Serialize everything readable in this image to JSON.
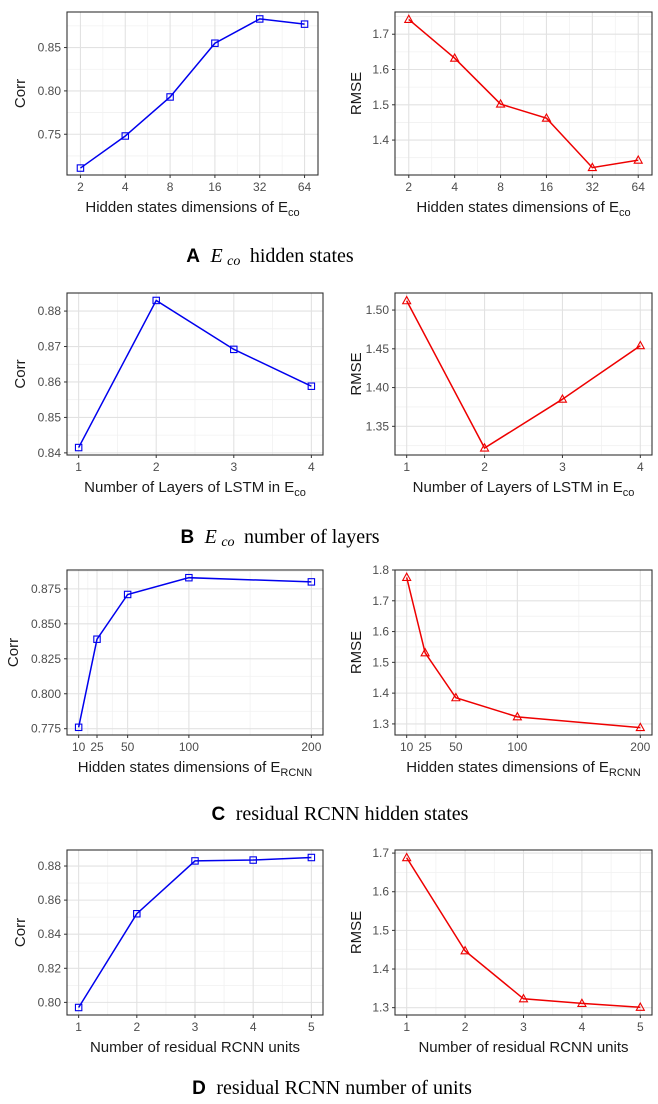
{
  "colors": {
    "corr": "#0000ee",
    "rmse": "#ee0000",
    "grid_major": "#e2e2e2",
    "grid_minor": "#f1f1f1",
    "panel_border": "#333333"
  },
  "panels": [
    {
      "letter": "A",
      "caption_math": "E",
      "caption_math_sub": "co",
      "caption_text": "hidden states"
    },
    {
      "letter": "B",
      "caption_math": "E",
      "caption_math_sub": "co",
      "caption_text": "number of layers"
    },
    {
      "letter": "C",
      "caption_math": "",
      "caption_math_sub": "",
      "caption_text": "residual RCNN hidden states"
    },
    {
      "letter": "D",
      "caption_math": "",
      "caption_math_sub": "",
      "caption_text": "residual RCNN number of units"
    }
  ],
  "chart_data": [
    {
      "type": "line",
      "panel": "A",
      "metric": "corr",
      "marker": "square",
      "xlabel": "Hidden states dimensions of E",
      "xlabel_sub": "co",
      "ylabel": "Corr",
      "x_scale": "categorical",
      "x": [
        2,
        4,
        8,
        16,
        32,
        64
      ],
      "x_tick_labels": [
        "2",
        "4",
        "8",
        "16",
        "32",
        "64"
      ],
      "y": [
        0.711,
        0.748,
        0.793,
        0.855,
        0.883,
        0.877
      ],
      "ylim": [
        0.703,
        0.891
      ],
      "y_ticks": [
        0.75,
        0.8,
        0.85
      ],
      "y_tick_labels": [
        "0.75",
        "0.80",
        "0.85"
      ],
      "grid": true
    },
    {
      "type": "line",
      "panel": "A",
      "metric": "rmse",
      "marker": "triangle",
      "xlabel": "Hidden states dimensions of E",
      "xlabel_sub": "co",
      "ylabel": "RMSE",
      "x_scale": "categorical",
      "x": [
        2,
        4,
        8,
        16,
        32,
        64
      ],
      "x_tick_labels": [
        "2",
        "4",
        "8",
        "16",
        "32",
        "64"
      ],
      "y": [
        1.742,
        1.632,
        1.502,
        1.462,
        1.322,
        1.343
      ],
      "ylim": [
        1.301,
        1.763
      ],
      "y_ticks": [
        1.4,
        1.5,
        1.6,
        1.7
      ],
      "y_tick_labels": [
        "1.4",
        "1.5",
        "1.6",
        "1.7"
      ],
      "grid": true
    },
    {
      "type": "line",
      "panel": "B",
      "metric": "corr",
      "marker": "square",
      "xlabel": "Number of Layers of LSTM in E",
      "xlabel_sub": "co",
      "ylabel": "Corr",
      "x_scale": "linear",
      "x": [
        1,
        2,
        3,
        4
      ],
      "x_tick_labels": [
        "1",
        "2",
        "3",
        "4"
      ],
      "xlim": [
        0.85,
        4.15
      ],
      "y": [
        0.8415,
        0.883,
        0.8692,
        0.8588
      ],
      "ylim": [
        0.8394,
        0.8851
      ],
      "y_ticks": [
        0.84,
        0.85,
        0.86,
        0.87,
        0.88
      ],
      "y_tick_labels": [
        "0.84",
        "0.85",
        "0.86",
        "0.87",
        "0.88"
      ],
      "grid": true
    },
    {
      "type": "line",
      "panel": "B",
      "metric": "rmse",
      "marker": "triangle",
      "xlabel": "Number of Layers of LSTM in E",
      "xlabel_sub": "co",
      "ylabel": "RMSE",
      "x_scale": "linear",
      "x": [
        1,
        2,
        3,
        4
      ],
      "x_tick_labels": [
        "1",
        "2",
        "3",
        "4"
      ],
      "xlim": [
        0.85,
        4.15
      ],
      "y": [
        1.512,
        1.322,
        1.385,
        1.454
      ],
      "ylim": [
        1.313,
        1.522
      ],
      "y_ticks": [
        1.35,
        1.4,
        1.45,
        1.5
      ],
      "y_tick_labels": [
        "1.35",
        "1.40",
        "1.45",
        "1.50"
      ],
      "grid": true
    },
    {
      "type": "line",
      "panel": "C",
      "metric": "corr",
      "marker": "square",
      "xlabel": "Hidden states dimensions of E",
      "xlabel_sub": "RCNN",
      "ylabel": "Corr",
      "x_scale": "linear",
      "x": [
        10,
        25,
        50,
        100,
        200
      ],
      "x_tick_labels": [
        "10",
        "25",
        "50",
        "100",
        "200"
      ],
      "xlim": [
        0.5,
        209.5
      ],
      "y": [
        0.776,
        0.839,
        0.871,
        0.883,
        0.88
      ],
      "ylim": [
        0.7705,
        0.8885
      ],
      "y_ticks": [
        0.775,
        0.8,
        0.825,
        0.85,
        0.875
      ],
      "y_tick_labels": [
        "0.775",
        "0.800",
        "0.825",
        "0.850",
        "0.875"
      ],
      "grid": true
    },
    {
      "type": "line",
      "panel": "C",
      "metric": "rmse",
      "marker": "triangle",
      "xlabel": "Hidden states dimensions of E",
      "xlabel_sub": "RCNN",
      "ylabel": "RMSE",
      "x_scale": "linear",
      "x": [
        10,
        25,
        50,
        100,
        200
      ],
      "x_tick_labels": [
        "10",
        "25",
        "50",
        "100",
        "200"
      ],
      "xlim": [
        0.5,
        209.5
      ],
      "y": [
        1.776,
        1.531,
        1.385,
        1.323,
        1.288
      ],
      "ylim": [
        1.264,
        1.8
      ],
      "y_ticks": [
        1.3,
        1.4,
        1.5,
        1.6,
        1.7,
        1.8
      ],
      "y_tick_labels": [
        "1.3",
        "1.4",
        "1.5",
        "1.6",
        "1.7",
        "1.8"
      ],
      "grid": true
    },
    {
      "type": "line",
      "panel": "D",
      "metric": "corr",
      "marker": "square",
      "xlabel": "Number of residual RCNN units",
      "xlabel_sub": "",
      "ylabel": "Corr",
      "x_scale": "linear",
      "x": [
        1,
        2,
        3,
        4,
        5
      ],
      "x_tick_labels": [
        "1",
        "2",
        "3",
        "4",
        "5"
      ],
      "xlim": [
        0.8,
        5.2
      ],
      "y": [
        0.797,
        0.852,
        0.883,
        0.8835,
        0.885
      ],
      "ylim": [
        0.7926,
        0.8894
      ],
      "y_ticks": [
        0.8,
        0.82,
        0.84,
        0.86,
        0.88
      ],
      "y_tick_labels": [
        "0.80",
        "0.82",
        "0.84",
        "0.86",
        "0.88"
      ],
      "grid": true
    },
    {
      "type": "line",
      "panel": "D",
      "metric": "rmse",
      "marker": "triangle",
      "xlabel": "Number of residual RCNN units",
      "xlabel_sub": "",
      "ylabel": "RMSE",
      "x_scale": "linear",
      "x": [
        1,
        2,
        3,
        4,
        5
      ],
      "x_tick_labels": [
        "1",
        "2",
        "3",
        "4",
        "5"
      ],
      "xlim": [
        0.8,
        5.2
      ],
      "y": [
        1.688,
        1.447,
        1.323,
        1.311,
        1.301
      ],
      "ylim": [
        1.281,
        1.708
      ],
      "y_ticks": [
        1.3,
        1.4,
        1.5,
        1.6,
        1.7
      ],
      "y_tick_labels": [
        "1.3",
        "1.4",
        "1.5",
        "1.6",
        "1.7"
      ],
      "grid": true
    }
  ]
}
